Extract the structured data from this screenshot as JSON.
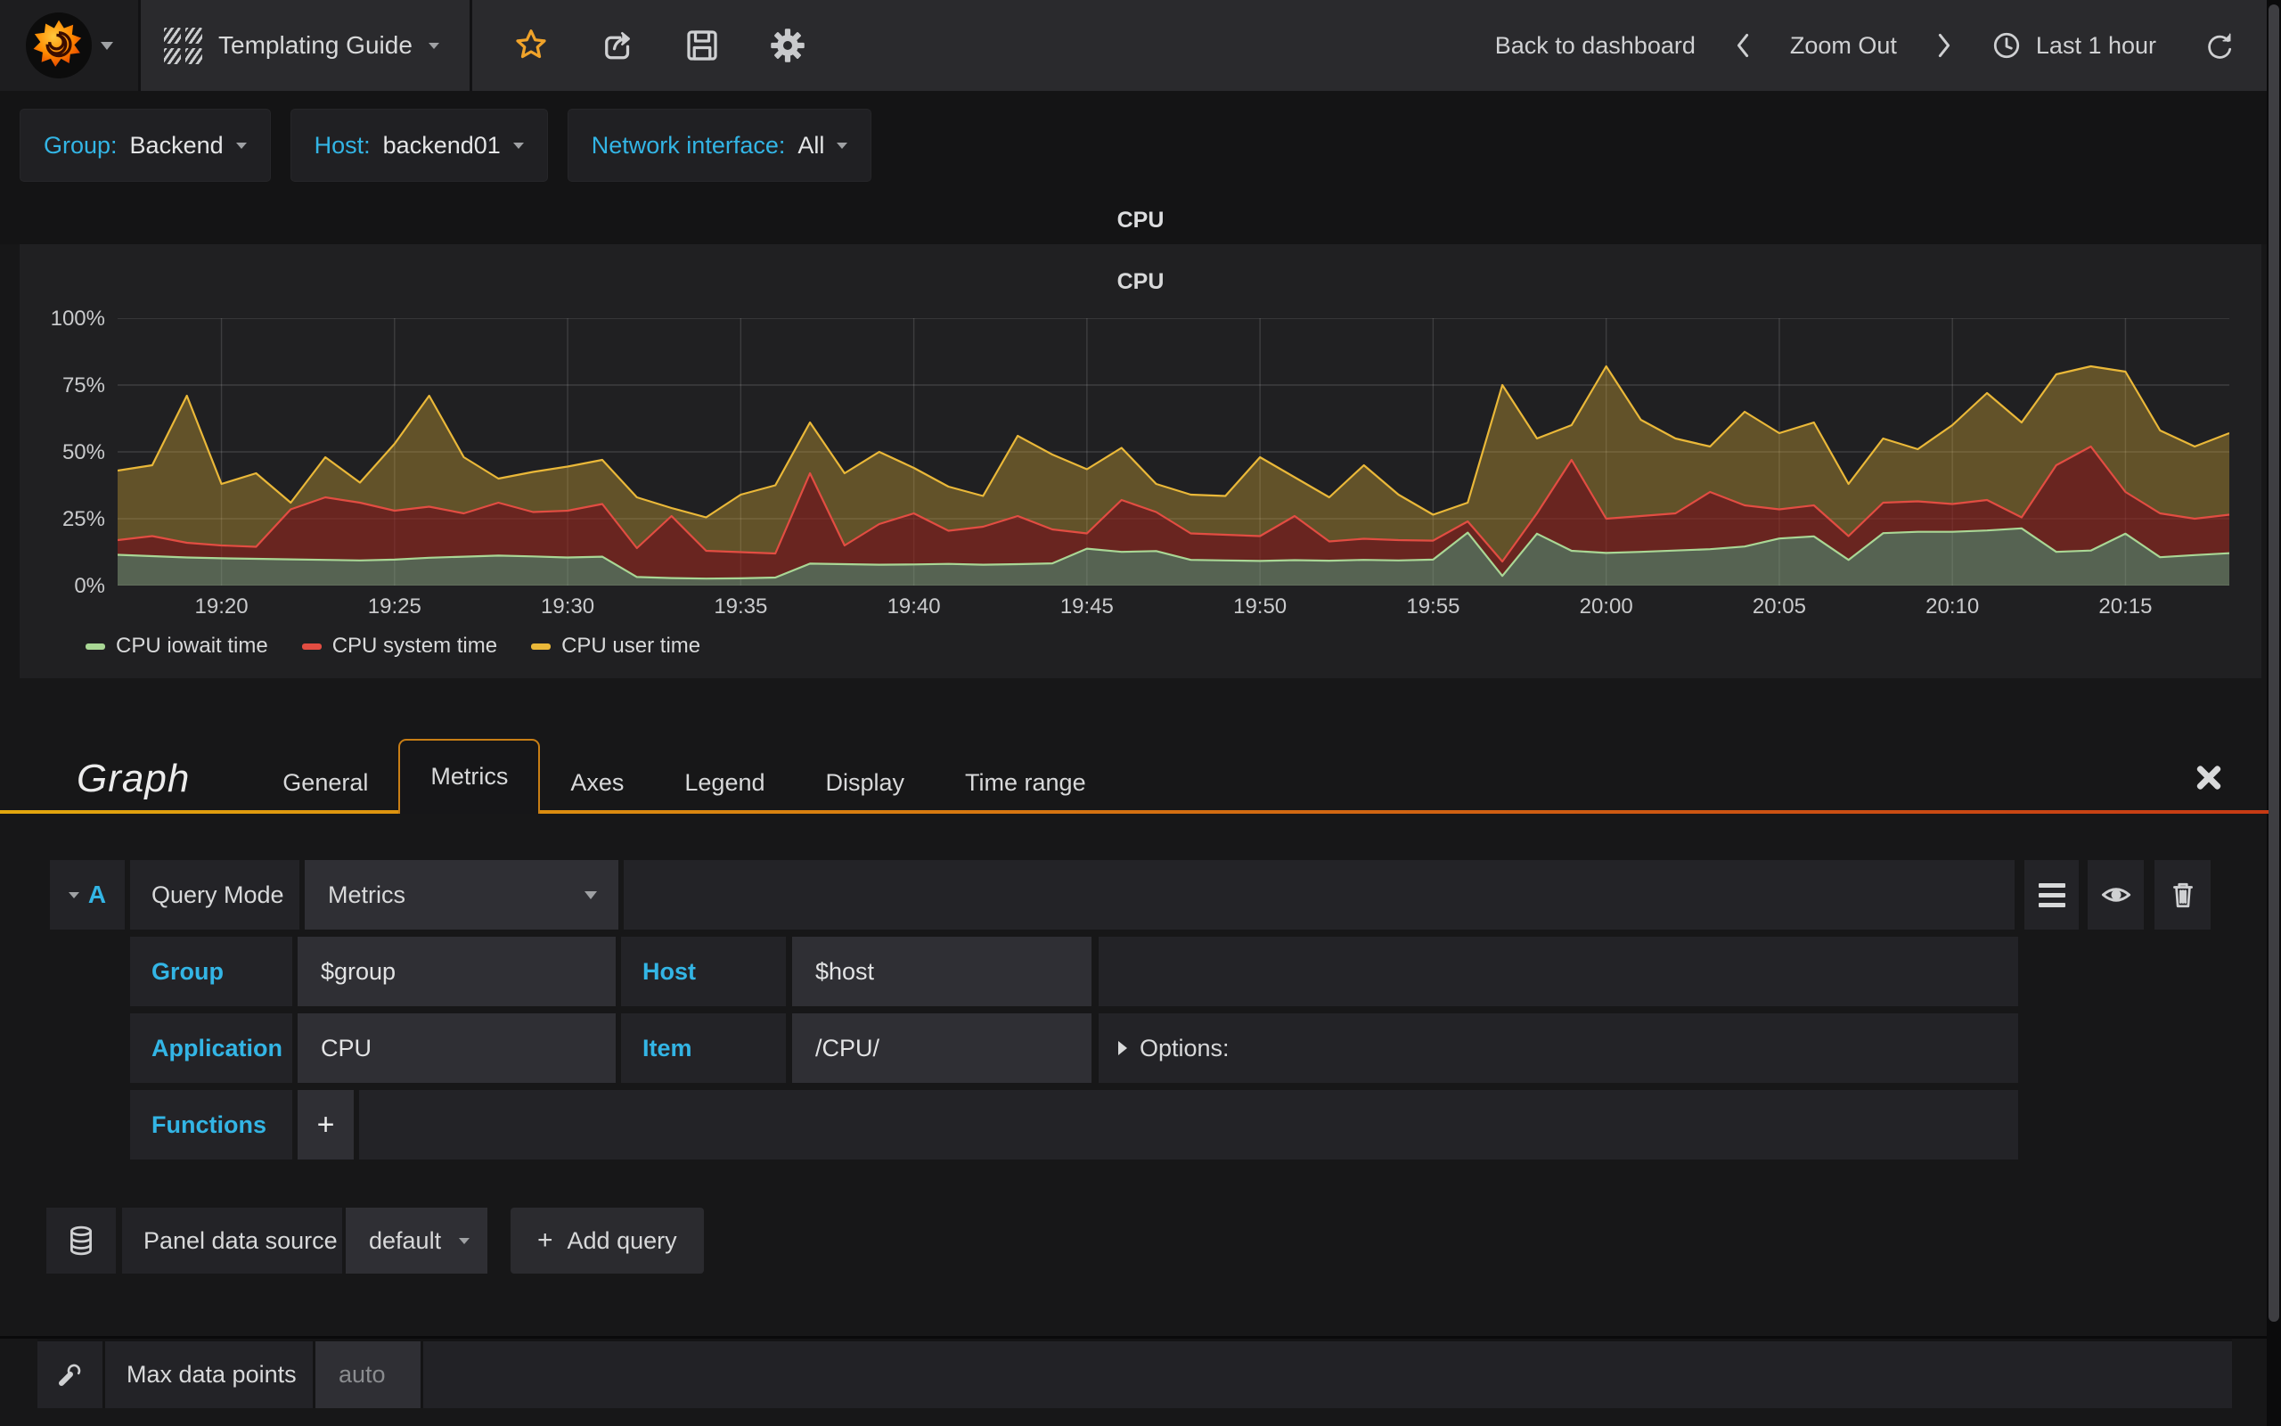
{
  "navbar": {
    "title": "Templating Guide",
    "back_to_dashboard": "Back to dashboard",
    "zoom_out": "Zoom Out",
    "time_range": "Last 1 hour",
    "star_color": "#f0a32a"
  },
  "variables": {
    "items": [
      {
        "label": "Group:",
        "value": "Backend"
      },
      {
        "label": "Host:",
        "value": "backend01"
      },
      {
        "label": "Network interface:",
        "value": "All"
      }
    ]
  },
  "panel": {
    "header_title": "CPU"
  },
  "chart_data": {
    "type": "area",
    "stacked": true,
    "title": "CPU",
    "unit": "percent",
    "x_start": "19:17",
    "x_end": "20:18",
    "step_minutes": 1,
    "total_minutes": 61,
    "first_tick_minute": 3,
    "tick_step_minutes": 5,
    "x_ticks": [
      "19:20",
      "19:25",
      "19:30",
      "19:35",
      "19:40",
      "19:45",
      "19:50",
      "19:55",
      "20:00",
      "20:05",
      "20:10",
      "20:15"
    ],
    "y_ticks": [
      "0%",
      "25%",
      "50%",
      "75%",
      "100%"
    ],
    "ylim": [
      0,
      100
    ],
    "grid": true,
    "legend_position": "bottom-left",
    "series": [
      {
        "name": "CPU iowait time",
        "color": "#a9d795",
        "fill": "rgba(140,165,130,0.5)",
        "values": [
          11.5,
          11.0,
          10.5,
          10.2,
          10.0,
          9.8,
          9.6,
          9.4,
          9.7,
          10.4,
          10.8,
          11.2,
          10.9,
          10.5,
          10.8,
          3.2,
          2.8,
          2.6,
          2.7,
          3.0,
          8.2,
          8.0,
          7.8,
          7.9,
          8.1,
          7.8,
          8.0,
          8.3,
          13.8,
          12.6,
          12.9,
          9.6,
          9.4,
          9.2,
          9.5,
          9.3,
          9.6,
          9.4,
          9.7,
          19.8,
          3.6,
          19.4,
          13.0,
          12.2,
          12.6,
          13.1,
          13.6,
          14.6,
          17.6,
          18.4,
          9.6,
          19.6,
          20.1,
          20.1,
          20.6,
          21.4,
          12.6,
          13.1,
          19.4,
          10.6,
          11.4,
          12.1
        ]
      },
      {
        "name": "CPU system time",
        "color": "#e24d42",
        "fill": "rgba(150,40,30,0.62)",
        "values": [
          5.5,
          7.5,
          5.5,
          4.8,
          4.5,
          18.7,
          23.4,
          21.6,
          18.3,
          19.1,
          16.2,
          19.8,
          16.6,
          17.5,
          19.7,
          10.8,
          23.2,
          10.4,
          9.8,
          9.0,
          33.8,
          7.0,
          15.2,
          19.1,
          12.4,
          14.2,
          18.0,
          12.7,
          5.7,
          19.4,
          14.6,
          9.9,
          9.6,
          9.3,
          16.5,
          7.2,
          7.9,
          7.6,
          7.1,
          4.2,
          5.4,
          7.6,
          34.0,
          12.8,
          13.4,
          13.9,
          21.4,
          15.4,
          10.9,
          11.6,
          8.9,
          11.4,
          11.4,
          10.4,
          11.4,
          4.1,
          32.4,
          38.9,
          15.6,
          16.4,
          13.6,
          14.4
        ]
      },
      {
        "name": "CPU user time",
        "color": "#eab839",
        "fill": "rgba(234,184,57,0.33)",
        "values": [
          26.0,
          26.5,
          55.0,
          23.0,
          27.5,
          2.5,
          15.0,
          7.5,
          25.0,
          41.5,
          21.0,
          9.0,
          15.0,
          16.5,
          16.5,
          19.0,
          3.0,
          12.5,
          21.5,
          25.5,
          19.0,
          27.0,
          27.0,
          17.0,
          16.5,
          11.5,
          30.0,
          28.0,
          24.0,
          19.5,
          10.5,
          14.5,
          14.5,
          29.5,
          14.5,
          16.5,
          27.5,
          17.0,
          9.7,
          7.0,
          66.0,
          28.0,
          13.0,
          57.0,
          36.0,
          28.0,
          17.0,
          35.0,
          28.5,
          31.0,
          19.5,
          24.0,
          19.5,
          29.5,
          40.0,
          35.5,
          34.0,
          30.0,
          45.0,
          31.0,
          27.0,
          30.5
        ]
      }
    ]
  },
  "editor": {
    "heading": "Graph",
    "tabs": [
      {
        "label": "General",
        "active": false
      },
      {
        "label": "Metrics",
        "active": true
      },
      {
        "label": "Axes",
        "active": false
      },
      {
        "label": "Legend",
        "active": false
      },
      {
        "label": "Display",
        "active": false
      },
      {
        "label": "Time range",
        "active": false
      }
    ],
    "query": {
      "ref": "A",
      "query_mode_label": "Query Mode",
      "query_mode_value": "Metrics",
      "group_label": "Group",
      "group_value": "$group",
      "host_label": "Host",
      "host_value": "$host",
      "application_label": "Application",
      "application_value": "CPU",
      "item_label": "Item",
      "item_value": "/CPU/",
      "options_label": "Options:",
      "functions_label": "Functions",
      "add_function_label": "+"
    },
    "datasource": {
      "label": "Panel data source",
      "value": "default",
      "add_query_plus": "+",
      "add_query": "Add query"
    },
    "settings": {
      "max_data_points_label": "Max data points",
      "max_data_points_placeholder": "auto"
    }
  }
}
